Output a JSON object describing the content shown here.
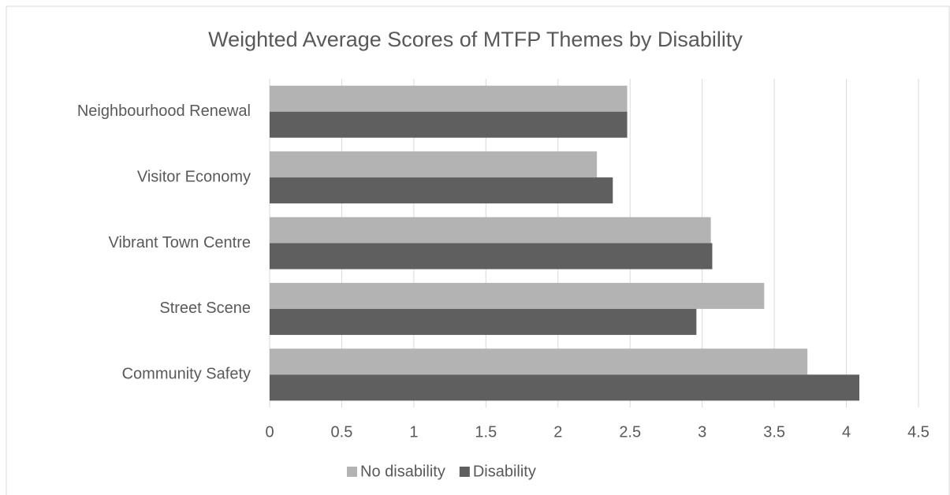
{
  "chart_data": {
    "type": "barh",
    "title": "Weighted Average Scores of MTFP Themes by Disability",
    "categories": [
      "Neighbourhood Renewal",
      "Visitor Economy",
      "Vibrant Town Centre",
      "Street Scene",
      "Community Safety"
    ],
    "series": [
      {
        "name": "No disability",
        "color": "#b3b3b3",
        "values": [
          2.48,
          2.27,
          3.06,
          3.43,
          3.73
        ]
      },
      {
        "name": "Disability",
        "color": "#5f5f5f",
        "values": [
          2.48,
          2.38,
          3.07,
          2.96,
          4.09
        ]
      }
    ],
    "xlim": [
      0,
      4.5
    ],
    "xticks": [
      0,
      0.5,
      1,
      1.5,
      2,
      2.5,
      3,
      3.5,
      4,
      4.5
    ],
    "grid": true,
    "legend": "bottom"
  }
}
